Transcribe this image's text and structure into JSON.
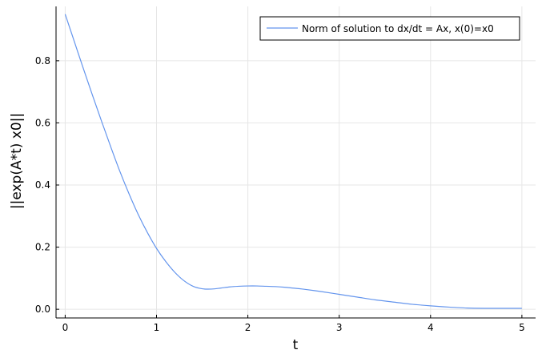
{
  "chart_data": {
    "type": "line",
    "xlabel": "t",
    "ylabel": "||exp(A*t) x0||",
    "xlim": [
      -0.1,
      5.15
    ],
    "ylim": [
      -0.028,
      0.975
    ],
    "xticks": [
      0,
      1,
      2,
      3,
      4,
      5
    ],
    "xtick_labels": [
      "0",
      "1",
      "2",
      "3",
      "4",
      "5"
    ],
    "yticks": [
      0.0,
      0.2,
      0.4,
      0.6,
      0.8
    ],
    "ytick_labels": [
      "0.0",
      "0.2",
      "0.4",
      "0.6",
      "0.8"
    ],
    "grid": true,
    "legend_position": "top-right",
    "series": [
      {
        "name": "Norm of solution to dx/dt = Ax, x(0)=x0",
        "color": "#6495ed",
        "x": [
          0,
          0.1,
          0.2,
          0.3,
          0.4,
          0.5,
          0.6,
          0.7,
          0.8,
          0.9,
          1.0,
          1.1,
          1.2,
          1.3,
          1.4,
          1.5,
          1.6,
          1.7,
          1.8,
          1.9,
          2.0,
          2.1,
          2.2,
          2.3,
          2.4,
          2.5,
          2.6,
          2.8,
          3.0,
          3.2,
          3.4,
          3.6,
          3.8,
          4.0,
          4.2,
          4.4,
          4.6,
          4.8,
          5.0
        ],
        "y": [
          0.95,
          0.862,
          0.774,
          0.688,
          0.604,
          0.522,
          0.443,
          0.371,
          0.305,
          0.247,
          0.196,
          0.154,
          0.119,
          0.092,
          0.074,
          0.066,
          0.065,
          0.068,
          0.072,
          0.074,
          0.075,
          0.075,
          0.074,
          0.073,
          0.071,
          0.068,
          0.065,
          0.057,
          0.048,
          0.039,
          0.03,
          0.023,
          0.016,
          0.011,
          0.007,
          0.004,
          0.003,
          0.003,
          0.003
        ]
      }
    ]
  }
}
